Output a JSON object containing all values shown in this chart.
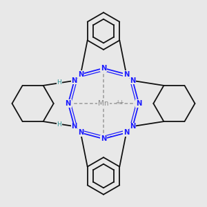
{
  "background_color": "#e8e8e8",
  "mn_color": "#888888",
  "n_color": "#1a1aff",
  "bond_color": "#111111",
  "h_color": "#2a9090",
  "figsize": [
    3.0,
    3.0
  ],
  "dpi": 100,
  "xlim": [
    -1.15,
    1.15
  ],
  "ylim": [
    -1.15,
    1.15
  ]
}
